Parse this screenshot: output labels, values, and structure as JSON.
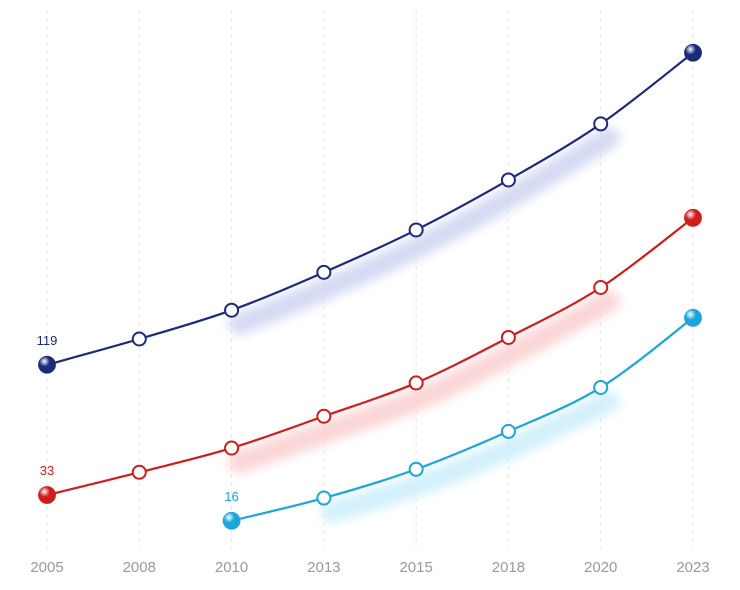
{
  "chart_data": {
    "type": "line",
    "categories": [
      "2005",
      "2008",
      "2010",
      "2013",
      "2015",
      "2018",
      "2020",
      "2023"
    ],
    "grid": true,
    "legend": "none",
    "series": [
      {
        "color": "#1b2a7a",
        "glow": "#c8cff0",
        "values": [
          119,
          136,
          155,
          180,
          208,
          241,
          278,
          325
        ],
        "end_markers": "filled",
        "start_label": "119"
      },
      {
        "color": "#d01c1c",
        "glow": "#f9c8c8",
        "values": [
          33,
          48,
          64,
          85,
          107,
          137,
          170,
          216
        ],
        "end_markers": "filled",
        "start_label": "33"
      },
      {
        "color": "#1aa6dc",
        "glow": "#c5ecfa",
        "values": [
          null,
          null,
          16,
          31,
          50,
          75,
          104,
          150
        ],
        "end_markers": "filled",
        "start_label": "16"
      }
    ],
    "ylim": [
      0,
      340
    ]
  }
}
